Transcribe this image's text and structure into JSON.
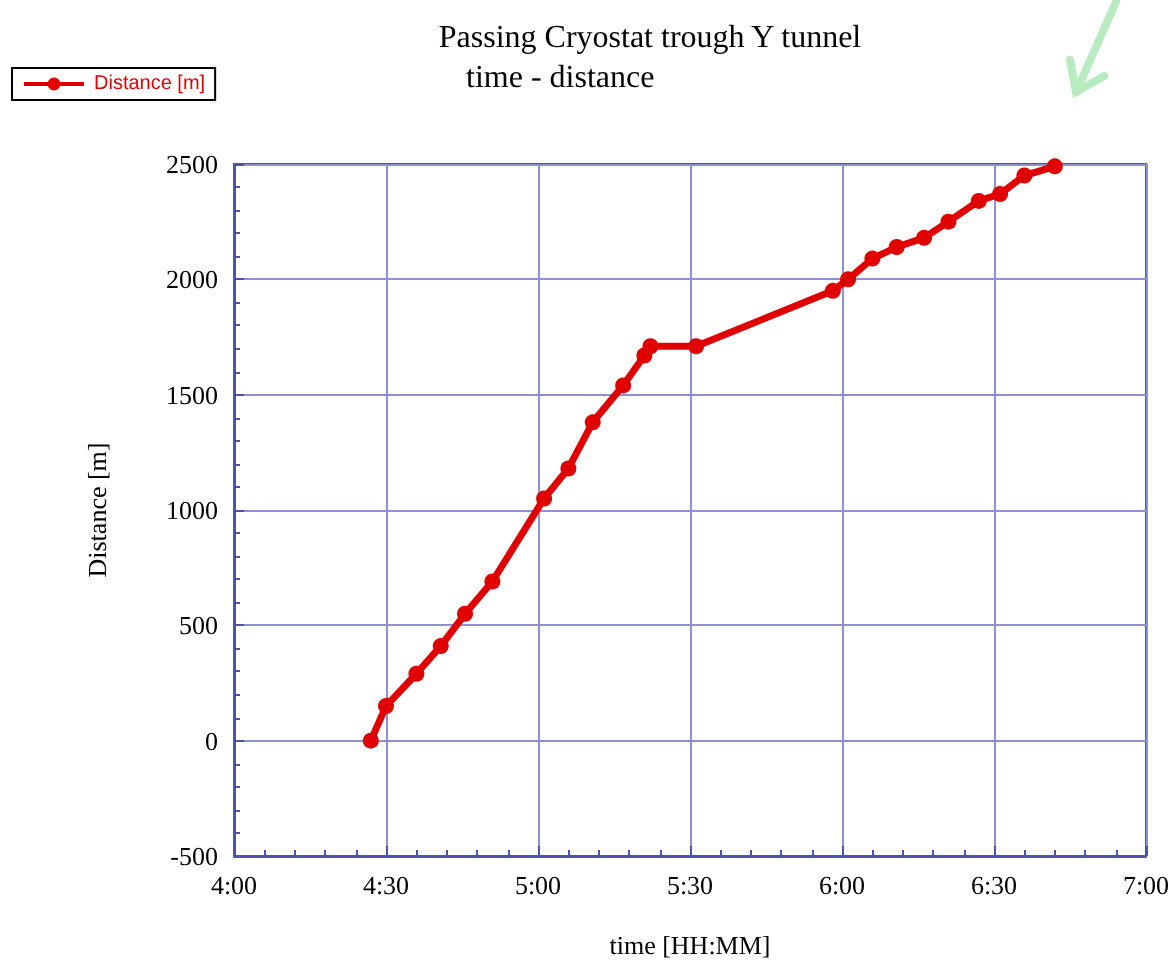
{
  "chart_data": {
    "type": "line",
    "title": "Passing Cryostat trough Y tunnel",
    "subtitle": "time - distance",
    "xlabel": "time [HH:MM]",
    "ylabel": "Distance [m]",
    "x": [
      4.45,
      4.5,
      4.6,
      4.68,
      4.76,
      4.85,
      5.02,
      5.1,
      5.18,
      5.28,
      5.35,
      5.37,
      5.52,
      5.97,
      6.02,
      6.1,
      6.18,
      6.27,
      6.35,
      6.45,
      6.52,
      6.6,
      6.7
    ],
    "series": [
      {
        "name": "Distance [m]",
        "color": "#e00000",
        "values": [
          0,
          150,
          290,
          410,
          550,
          690,
          1050,
          1180,
          1380,
          1540,
          1670,
          1710,
          1710,
          1950,
          2000,
          2090,
          2140,
          2180,
          2250,
          2340,
          2370,
          2450,
          2490
        ]
      }
    ],
    "xlim": [
      4,
      7
    ],
    "xticks": [
      {
        "value": 4,
        "label": "4:00"
      },
      {
        "value": 4.5,
        "label": "4:30"
      },
      {
        "value": 5,
        "label": "5:00"
      },
      {
        "value": 5.5,
        "label": "5:30"
      },
      {
        "value": 6,
        "label": "6:00"
      },
      {
        "value": 6.5,
        "label": "6:30"
      },
      {
        "value": 7,
        "label": "7:00"
      }
    ],
    "ylim": [
      -500,
      2500
    ],
    "yticks": [
      -500,
      0,
      500,
      1000,
      1500,
      2000,
      2500
    ],
    "grid": true,
    "legend": "top left",
    "marker": "circle",
    "line_style": "solid"
  }
}
